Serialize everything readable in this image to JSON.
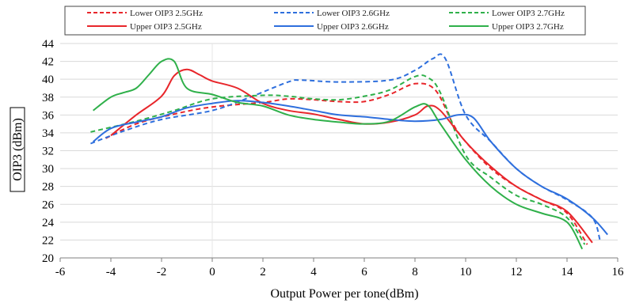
{
  "chart_data": {
    "type": "line",
    "xlabel": "Output Power per tone(dBm)",
    "ylabel": "OIP3 (dBm)",
    "xlim": [
      -6,
      16
    ],
    "ylim": [
      20,
      44
    ],
    "xticks": [
      -6,
      -4,
      -2,
      0,
      2,
      4,
      6,
      8,
      10,
      12,
      14,
      16
    ],
    "yticks": [
      20,
      22,
      24,
      26,
      28,
      30,
      32,
      34,
      36,
      38,
      40,
      42,
      44
    ],
    "x_tick_labels": [
      "-6",
      "-4",
      "-2",
      "0",
      "2",
      "4",
      "6",
      "8",
      "10",
      "12",
      "14",
      "16"
    ],
    "y_tick_labels": [
      "20",
      "22",
      "24",
      "26",
      "28",
      "30",
      "32",
      "34",
      "36",
      "38",
      "40",
      "42",
      "44"
    ],
    "grid": "horizontal",
    "legend_position": "top",
    "series": [
      {
        "name": "Lower OIP3 2.5GHz",
        "color": "#e8262b",
        "dash": "dashed",
        "points": [
          [
            -4.2,
            33.4
          ],
          [
            -3,
            35
          ],
          [
            -1.5,
            36.1
          ],
          [
            0,
            36.9
          ],
          [
            2,
            37.4
          ],
          [
            3,
            37.8
          ],
          [
            4,
            37.7
          ],
          [
            5,
            37.5
          ],
          [
            6,
            37.5
          ],
          [
            7,
            38.3
          ],
          [
            8,
            39.5
          ],
          [
            8.8,
            38.8
          ],
          [
            9.5,
            35
          ],
          [
            10,
            33
          ],
          [
            11,
            30
          ],
          [
            12,
            28
          ],
          [
            13,
            26.5
          ],
          [
            14,
            25
          ],
          [
            14.8,
            21.5
          ]
        ]
      },
      {
        "name": "Lower OIP3 2.6GHz",
        "color": "#2e6fdd",
        "dash": "dashed",
        "points": [
          [
            -4.8,
            32.8
          ],
          [
            -3.5,
            34.2
          ],
          [
            -2,
            35.5
          ],
          [
            0,
            36.5
          ],
          [
            1.5,
            38
          ],
          [
            3,
            39.7
          ],
          [
            3.5,
            39.9
          ],
          [
            5,
            39.7
          ],
          [
            7,
            39.9
          ],
          [
            8,
            41
          ],
          [
            8.7,
            42.3
          ],
          [
            9.2,
            42.3
          ],
          [
            10,
            36
          ],
          [
            11,
            33
          ],
          [
            12,
            30
          ],
          [
            13,
            28
          ],
          [
            14,
            26.5
          ],
          [
            15,
            24.5
          ],
          [
            15.3,
            22
          ]
        ]
      },
      {
        "name": "Lower OIP3 2.7GHz",
        "color": "#2fb04a",
        "dash": "dashed",
        "points": [
          [
            -4.8,
            34.1
          ],
          [
            -3,
            35.3
          ],
          [
            -1.5,
            36.5
          ],
          [
            0,
            37.8
          ],
          [
            2,
            38.2
          ],
          [
            3,
            38.1
          ],
          [
            4,
            37.8
          ],
          [
            5,
            37.7
          ],
          [
            6,
            38.1
          ],
          [
            7,
            38.8
          ],
          [
            8,
            40.3
          ],
          [
            8.5,
            40.2
          ],
          [
            9,
            38.5
          ],
          [
            10,
            31.5
          ],
          [
            11,
            29
          ],
          [
            12,
            27
          ],
          [
            13,
            26
          ],
          [
            14,
            24.5
          ],
          [
            14.7,
            21.5
          ]
        ]
      },
      {
        "name": "Upper OIP3 2.5GHz",
        "color": "#e8262b",
        "dash": "solid",
        "points": [
          [
            -4,
            33.7
          ],
          [
            -3,
            36
          ],
          [
            -2,
            38.1
          ],
          [
            -1.5,
            40.4
          ],
          [
            -1,
            41.1
          ],
          [
            -0.5,
            40.5
          ],
          [
            0,
            39.8
          ],
          [
            1,
            39
          ],
          [
            2,
            37.3
          ],
          [
            3,
            36.5
          ],
          [
            4,
            36.1
          ],
          [
            5,
            35.5
          ],
          [
            6,
            35
          ],
          [
            7,
            35.2
          ],
          [
            8,
            36
          ],
          [
            8.5,
            37
          ],
          [
            9,
            36.5
          ],
          [
            10,
            33
          ],
          [
            11,
            30.2
          ],
          [
            12,
            28
          ],
          [
            13,
            26.5
          ],
          [
            14,
            25.2
          ],
          [
            15,
            21.7
          ]
        ]
      },
      {
        "name": "Upper OIP3 2.6GHz",
        "color": "#2e6fdd",
        "dash": "solid",
        "points": [
          [
            -4.7,
            33
          ],
          [
            -4,
            34.5
          ],
          [
            -3,
            35.2
          ],
          [
            -2,
            35.8
          ],
          [
            -1,
            36.8
          ],
          [
            0,
            37.3
          ],
          [
            1,
            37.6
          ],
          [
            2,
            37.4
          ],
          [
            3,
            37
          ],
          [
            4,
            36.5
          ],
          [
            5,
            36
          ],
          [
            6,
            35.8
          ],
          [
            7,
            35.5
          ],
          [
            8,
            35.3
          ],
          [
            9,
            35.5
          ],
          [
            9.7,
            36
          ],
          [
            10.3,
            35.7
          ],
          [
            11,
            33
          ],
          [
            12,
            30
          ],
          [
            13,
            28
          ],
          [
            14,
            26.6
          ],
          [
            15,
            24.5
          ],
          [
            15.6,
            22.6
          ]
        ]
      },
      {
        "name": "Upper OIP3 2.7GHz",
        "color": "#2fb04a",
        "dash": "solid",
        "points": [
          [
            -4.7,
            36.5
          ],
          [
            -4,
            38
          ],
          [
            -3.5,
            38.5
          ],
          [
            -3,
            39
          ],
          [
            -2.5,
            40.5
          ],
          [
            -2,
            42
          ],
          [
            -1.5,
            42
          ],
          [
            -1,
            39
          ],
          [
            0,
            38.3
          ],
          [
            1,
            37.4
          ],
          [
            2,
            37
          ],
          [
            3,
            36
          ],
          [
            4,
            35.5
          ],
          [
            5,
            35.2
          ],
          [
            6,
            35
          ],
          [
            7,
            35.3
          ],
          [
            8,
            36.9
          ],
          [
            8.5,
            37.1
          ],
          [
            9,
            35
          ],
          [
            10,
            31
          ],
          [
            11,
            28
          ],
          [
            12,
            26
          ],
          [
            13,
            25
          ],
          [
            14,
            24
          ],
          [
            14.6,
            21
          ]
        ]
      }
    ]
  }
}
